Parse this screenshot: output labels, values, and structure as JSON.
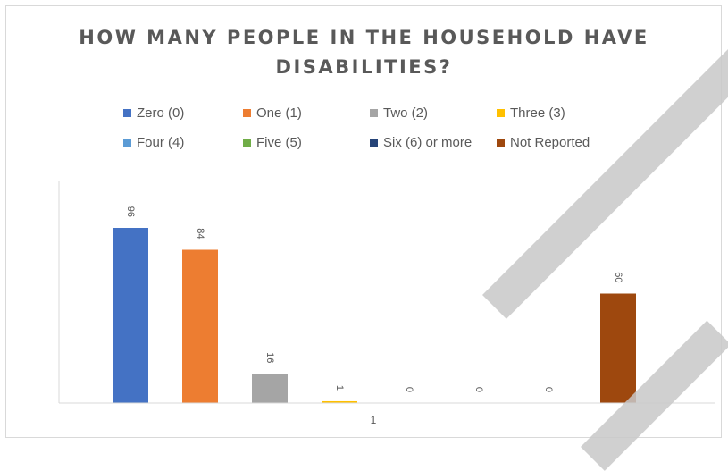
{
  "chart_data": {
    "type": "bar",
    "title": "HOW MANY PEOPLE IN THE HOUSEHOLD HAVE DISABILITIES?",
    "title_lines": [
      "HOW MANY PEOPLE IN THE HOUSEHOLD HAVE",
      "DISABILITIES?"
    ],
    "categories": [
      "1"
    ],
    "series": [
      {
        "name": "Zero (0)",
        "values": [
          96
        ],
        "color": "#4472C4"
      },
      {
        "name": "One (1)",
        "values": [
          84
        ],
        "color": "#ED7D31"
      },
      {
        "name": "Two (2)",
        "values": [
          16
        ],
        "color": "#A5A5A5"
      },
      {
        "name": "Three (3)",
        "values": [
          1
        ],
        "color": "#FFC000"
      },
      {
        "name": "Four (4)",
        "values": [
          0
        ],
        "color": "#5B9BD5"
      },
      {
        "name": "Five (5)",
        "values": [
          0
        ],
        "color": "#70AD47"
      },
      {
        "name": "Six (6) or more",
        "values": [
          0
        ],
        "color": "#264478"
      },
      {
        "name": "Not Reported",
        "values": [
          60
        ],
        "color": "#9E480E"
      }
    ],
    "legend_position": "top",
    "data_labels": true,
    "data_label_rotation": "vertical",
    "grid": false,
    "ylim": [
      0,
      120
    ],
    "xlabel": "",
    "ylabel": ""
  }
}
